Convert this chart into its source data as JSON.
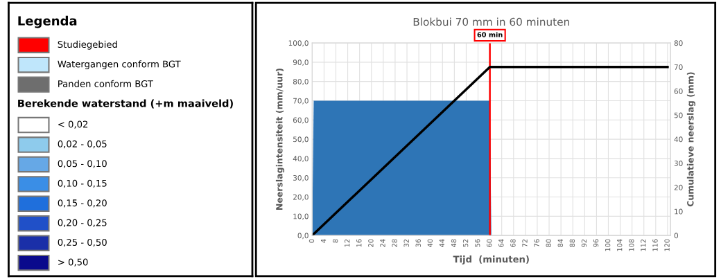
{
  "chart_data": [
    {
      "type": "other",
      "title": "Legenda",
      "subtitle": "Berekende waterstand (+m maaiveld)",
      "categories": [
        "Studiegebied",
        "Watergangen conform BGT",
        "Panden conform BGT",
        "< 0,02",
        "0,02 - 0,05",
        "0,05 - 0,10",
        "0,10 - 0,15",
        "0,15 - 0,20",
        "0,20 - 0,25",
        "0,25 - 0,50",
        "> 0,50"
      ],
      "colors": [
        "#ff0000",
        "#bfe6fb",
        "#6e6e6e",
        "#ffffff",
        "#8ecbec",
        "#66a8e6",
        "#3a8ee6",
        "#1f6fdc",
        "#2050c8",
        "#1a2fa8",
        "#0a0a8c"
      ]
    },
    {
      "type": "area",
      "title": "Blokbui 70 mm in 60 minuten",
      "xlabel": "Tijd  (minuten)",
      "ylabel": "Neerslagintensiteit (mm/uur)",
      "y2label": "Cumulatieve neerslag (mm)",
      "series": [
        {
          "type": "area",
          "color": "#2e75b6",
          "x": [
            0,
            0.5,
            60,
            60.5
          ],
          "values": [
            0,
            70,
            70,
            0
          ]
        },
        {
          "type": "line",
          "axis": "y2",
          "color": "#000000",
          "x": [
            0,
            60,
            120
          ],
          "values": [
            0,
            70,
            70
          ]
        }
      ],
      "xlim": [
        0,
        121
      ],
      "xticks": [
        0,
        4,
        8,
        12,
        16,
        20,
        24,
        28,
        32,
        36,
        40,
        44,
        48,
        52,
        56,
        60,
        64,
        68,
        72,
        76,
        80,
        84,
        88,
        92,
        96,
        100,
        104,
        108,
        112,
        116,
        120
      ],
      "ylim": [
        0,
        100
      ],
      "yticks": [
        {
          "value": 0,
          "label": "0,0"
        },
        {
          "value": 10,
          "label": "10,0"
        },
        {
          "value": 20,
          "label": "20,0"
        },
        {
          "value": 30,
          "label": "30,0"
        },
        {
          "value": 40,
          "label": "40,0"
        },
        {
          "value": 50,
          "label": "50,0"
        },
        {
          "value": 60,
          "label": "60,0"
        },
        {
          "value": 70,
          "label": "70,0"
        },
        {
          "value": 80,
          "label": "80,0"
        },
        {
          "value": 90,
          "label": "90,0"
        },
        {
          "value": 100,
          "label": "100,0"
        }
      ],
      "y2lim": [
        0,
        80
      ],
      "y2ticks": [
        0,
        10,
        20,
        30,
        40,
        50,
        60,
        70,
        80
      ],
      "ref_lines": [
        {
          "axis": "x",
          "value": 60,
          "label": "60 min",
          "color": "#ff0000",
          "line_style": "solid"
        }
      ],
      "grid": true
    }
  ]
}
